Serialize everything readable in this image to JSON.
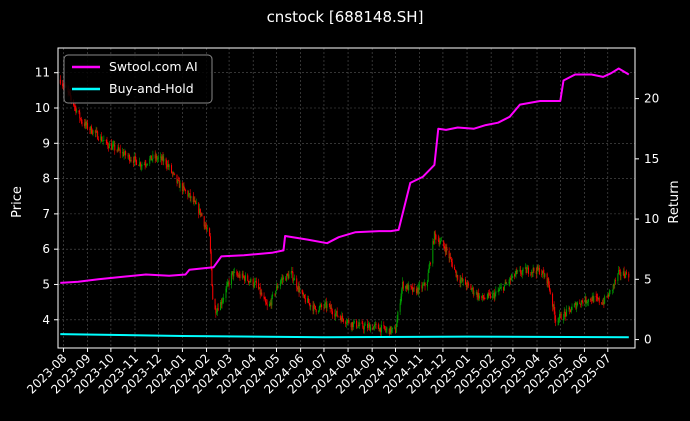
{
  "chart_data": {
    "type": "line",
    "title": "cnstock [688148.SH]",
    "xlabel": "",
    "ylabel": "Price",
    "y2label": "Return",
    "x_tick_labels": [
      "2023-08",
      "2023-09",
      "2023-10",
      "2023-11",
      "2023-12",
      "2024-01",
      "2024-02",
      "2024-03",
      "2024-04",
      "2024-05",
      "2024-06",
      "2024-07",
      "2024-08",
      "2024-09",
      "2024-10",
      "2024-11",
      "2024-12",
      "2025-01",
      "2025-02",
      "2025-03",
      "2025-04",
      "2025-05",
      "2025-06",
      "2025-07"
    ],
    "ylim": [
      3.2,
      11.7
    ],
    "y_ticks": [
      4,
      5,
      6,
      7,
      8,
      9,
      10,
      11
    ],
    "y2lim": [
      -0.7,
      24.2
    ],
    "y2_ticks": [
      0,
      5,
      10,
      15,
      20
    ],
    "grid": true,
    "legend_position": "top-left",
    "colors": {
      "background": "#000000",
      "up": "#00a000",
      "down": "#ff0000",
      "strategy": "#ff00ff",
      "buyhold": "#00ffff",
      "grid": "#555555"
    },
    "price_series": {
      "x": [
        "2023-07-28",
        "2023-08-10",
        "2023-08-25",
        "2023-09-10",
        "2023-09-25",
        "2023-10-10",
        "2023-10-25",
        "2023-11-10",
        "2023-11-25",
        "2023-12-10",
        "2023-12-25",
        "2024-01-10",
        "2024-01-25",
        "2024-02-05",
        "2024-02-10",
        "2024-02-20",
        "2024-03-05",
        "2024-03-20",
        "2024-04-05",
        "2024-04-20",
        "2024-05-05",
        "2024-05-20",
        "2024-06-05",
        "2024-06-20",
        "2024-07-05",
        "2024-07-20",
        "2024-08-05",
        "2024-08-20",
        "2024-09-05",
        "2024-09-20",
        "2024-10-01",
        "2024-10-10",
        "2024-10-25",
        "2024-11-10",
        "2024-11-20",
        "2024-12-05",
        "2024-12-20",
        "2025-01-05",
        "2025-01-20",
        "2025-02-05",
        "2025-02-20",
        "2025-03-05",
        "2025-03-20",
        "2025-04-05",
        "2025-04-15",
        "2025-04-25",
        "2025-05-10",
        "2025-05-25",
        "2025-06-10",
        "2025-06-25",
        "2025-07-05",
        "2025-07-15",
        "2025-07-28"
      ],
      "close": [
        10.8,
        10.3,
        9.6,
        9.3,
        9.0,
        8.8,
        8.6,
        8.4,
        8.6,
        8.5,
        7.9,
        7.5,
        7.0,
        6.3,
        4.2,
        4.5,
        5.3,
        5.2,
        5.0,
        4.3,
        5.1,
        5.3,
        4.6,
        4.3,
        4.4,
        4.1,
        3.9,
        3.8,
        3.8,
        3.7,
        3.7,
        5.0,
        4.8,
        5.0,
        6.4,
        6.0,
        5.2,
        4.9,
        4.6,
        4.7,
        5.0,
        5.3,
        5.4,
        5.4,
        5.1,
        4.0,
        4.2,
        4.5,
        4.6,
        4.5,
        4.8,
        5.3,
        5.3
      ]
    },
    "series": [
      {
        "name": "Swtool.com AI",
        "x": [
          "2023-07-28",
          "2023-08-20",
          "2023-09-15",
          "2023-10-15",
          "2023-11-15",
          "2023-12-15",
          "2024-01-05",
          "2024-01-10",
          "2024-02-10",
          "2024-02-20",
          "2024-03-20",
          "2024-04-25",
          "2024-05-10",
          "2024-05-12",
          "2024-06-10",
          "2024-07-05",
          "2024-07-20",
          "2024-08-10",
          "2024-09-10",
          "2024-09-25",
          "2024-10-05",
          "2024-10-20",
          "2024-11-05",
          "2024-11-20",
          "2024-11-25",
          "2024-12-05",
          "2024-12-20",
          "2025-01-10",
          "2025-01-25",
          "2025-02-10",
          "2025-02-25",
          "2025-03-10",
          "2025-04-05",
          "2025-04-20",
          "2025-05-01",
          "2025-05-05",
          "2025-05-20",
          "2025-06-10",
          "2025-06-25",
          "2025-07-05",
          "2025-07-15",
          "2025-07-28"
        ],
        "values": [
          4.7,
          4.8,
          5.0,
          5.2,
          5.4,
          5.3,
          5.4,
          5.8,
          6.0,
          6.9,
          7.0,
          7.2,
          7.4,
          8.6,
          8.3,
          8.0,
          8.5,
          8.9,
          9.0,
          9.0,
          9.1,
          13.0,
          13.5,
          14.5,
          17.5,
          17.4,
          17.6,
          17.5,
          17.8,
          18.0,
          18.5,
          19.5,
          19.8,
          19.8,
          19.8,
          21.5,
          22.0,
          22.0,
          21.8,
          22.1,
          22.5,
          22.0
        ]
      },
      {
        "name": "Buy-and-Hold",
        "x": [
          "2023-07-28",
          "2024-01-01",
          "2024-07-01",
          "2025-01-01",
          "2025-07-28"
        ],
        "values": [
          0.45,
          0.3,
          0.2,
          0.25,
          0.2
        ]
      }
    ]
  }
}
